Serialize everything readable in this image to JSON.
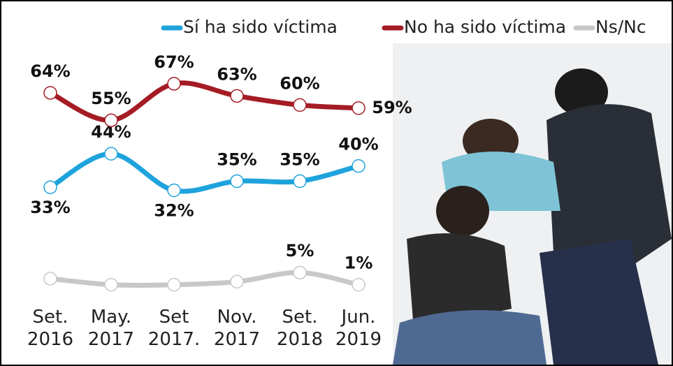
{
  "chart_data": {
    "type": "line",
    "categories": [
      "Set. 2016",
      "May. 2017",
      "Set 2017.",
      "Nov. 2017",
      "Set. 2018",
      "Jun. 2019"
    ],
    "series": [
      {
        "name": "Sí ha sido víctima",
        "color": "#1ea3dc",
        "values": [
          33,
          44,
          32,
          35,
          35,
          40
        ],
        "value_labels": [
          "33%",
          "44%",
          "32%",
          "35%",
          "35%",
          "40%"
        ]
      },
      {
        "name": "No ha sido víctima",
        "color": "#a51c24",
        "values": [
          64,
          55,
          67,
          63,
          60,
          59
        ],
        "value_labels": [
          "64%",
          "55%",
          "67%",
          "63%",
          "60%",
          "59%"
        ]
      },
      {
        "name": "Ns/Nc",
        "color": "#c8c8c8",
        "values": [
          3,
          1,
          1,
          2,
          5,
          1
        ],
        "value_labels": [
          null,
          null,
          null,
          null,
          "5%",
          "1%"
        ]
      }
    ]
  }
}
